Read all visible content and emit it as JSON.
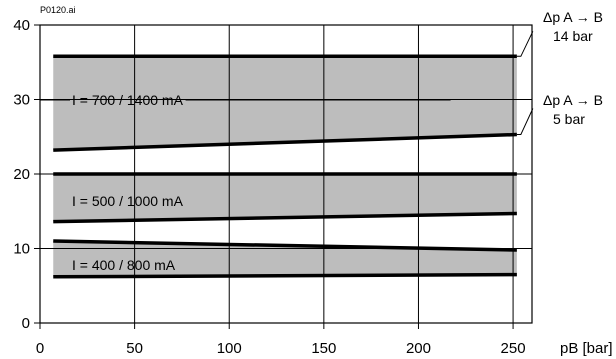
{
  "chart_data": {
    "type": "area",
    "source_tag": "P0120.ai",
    "xlabel": "pB [bar]",
    "ylabel": "",
    "xlim": [
      0,
      260
    ],
    "ylim": [
      0,
      40
    ],
    "x_ticks": [
      0,
      50,
      100,
      150,
      200,
      250
    ],
    "y_ticks": [
      0,
      10,
      20,
      30,
      40
    ],
    "grid": true,
    "bands": [
      {
        "name": "I = 700 / 1400 mA",
        "x": [
          7,
          252
        ],
        "upper": [
          35.8,
          35.8
        ],
        "lower": [
          23.2,
          25.3
        ]
      },
      {
        "name": "I = 500 / 1000 mA",
        "x": [
          7,
          252
        ],
        "upper": [
          20.0,
          20.0
        ],
        "lower": [
          13.6,
          14.7
        ]
      },
      {
        "name": "I = 400 / 800 mA",
        "x": [
          7,
          252
        ],
        "upper": [
          11.0,
          9.8
        ],
        "lower": [
          6.2,
          6.5
        ]
      }
    ],
    "annotations": [
      {
        "line1": "Δp A → B",
        "line2": "14 bar"
      },
      {
        "line1": "Δp A → B",
        "line2": "5 bar"
      }
    ],
    "colors": {
      "band_fill": "#bdbdbd",
      "curve": "#000000",
      "grid": "#000000"
    }
  }
}
